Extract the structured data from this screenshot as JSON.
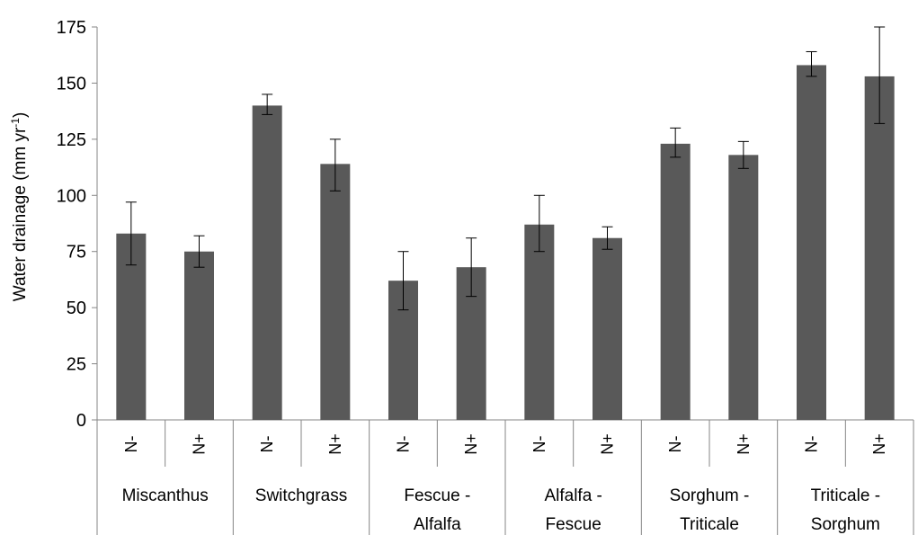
{
  "chart_data": {
    "type": "bar",
    "ylabel": "Water drainage (mm yr",
    "ylabel_sup": "-1",
    "ylabel_close": ")",
    "ylim": [
      0,
      175
    ],
    "yticks": [
      "0",
      "25",
      "50",
      "75",
      "100",
      "125",
      "150",
      "175"
    ],
    "ytick_values": [
      0,
      25,
      50,
      75,
      100,
      125,
      150,
      175
    ],
    "grid": false,
    "bar_color": "#595959",
    "groups": [
      {
        "label_lines": [
          "Miscanthus"
        ],
        "bars": [
          {
            "label": "N-",
            "value": 83,
            "err_low": 69,
            "err_high": 97
          },
          {
            "label": "N+",
            "value": 75,
            "err_low": 68,
            "err_high": 82
          }
        ]
      },
      {
        "label_lines": [
          "Switchgrass"
        ],
        "bars": [
          {
            "label": "N-",
            "value": 140,
            "err_low": 136,
            "err_high": 145
          },
          {
            "label": "N+",
            "value": 114,
            "err_low": 102,
            "err_high": 125
          }
        ]
      },
      {
        "label_lines": [
          "Fescue -",
          "Alfalfa"
        ],
        "bars": [
          {
            "label": "N-",
            "value": 62,
            "err_low": 49,
            "err_high": 75
          },
          {
            "label": "N+",
            "value": 68,
            "err_low": 55,
            "err_high": 81
          }
        ]
      },
      {
        "label_lines": [
          "Alfalfa -",
          "Fescue"
        ],
        "bars": [
          {
            "label": "N-",
            "value": 87,
            "err_low": 75,
            "err_high": 100
          },
          {
            "label": "N+",
            "value": 81,
            "err_low": 76,
            "err_high": 86
          }
        ]
      },
      {
        "label_lines": [
          "Sorghum -",
          "Triticale"
        ],
        "bars": [
          {
            "label": "N-",
            "value": 123,
            "err_low": 117,
            "err_high": 130
          },
          {
            "label": "N+",
            "value": 118,
            "err_low": 112,
            "err_high": 124
          }
        ]
      },
      {
        "label_lines": [
          "Triticale -",
          "Sorghum"
        ],
        "bars": [
          {
            "label": "N-",
            "value": 158,
            "err_low": 153,
            "err_high": 164
          },
          {
            "label": "N+",
            "value": 153,
            "err_low": 132,
            "err_high": 175
          }
        ]
      }
    ]
  }
}
